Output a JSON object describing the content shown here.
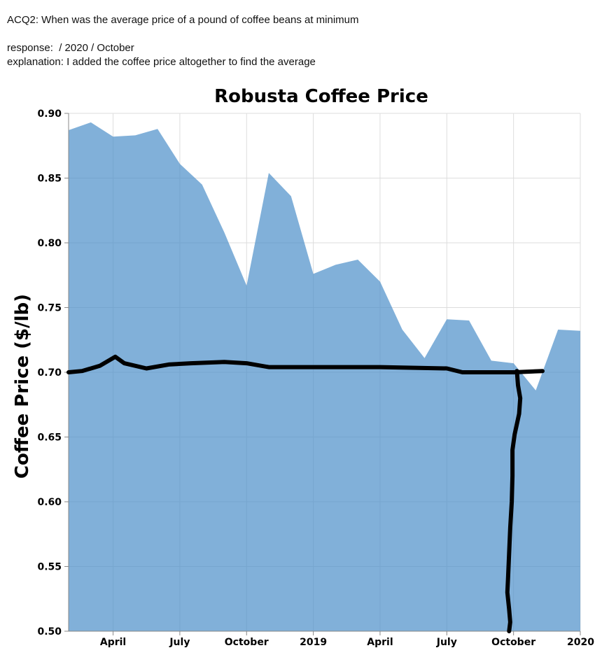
{
  "annotation": {
    "question": "ACQ2: When was the average price of a pound of coffee beans at minimum",
    "response": "response:  / 2020 / October",
    "explanation": "explanation: I added the coffee price altogether to find the average"
  },
  "chart_data": {
    "type": "area",
    "title": "Robusta Coffee Price",
    "xlabel": "",
    "ylabel": "Coffee Price ($/lb)",
    "ylim": [
      0.5,
      0.9
    ],
    "y_ticks": [
      "0.50",
      "0.55",
      "0.60",
      "0.65",
      "0.70",
      "0.75",
      "0.80",
      "0.85",
      "0.90"
    ],
    "x_ticks": [
      {
        "label": "April",
        "t": 3
      },
      {
        "label": "July",
        "t": 6
      },
      {
        "label": "October",
        "t": 9
      },
      {
        "label": "2019",
        "t": 12
      },
      {
        "label": "April",
        "t": 15
      },
      {
        "label": "July",
        "t": 18
      },
      {
        "label": "October",
        "t": 21
      },
      {
        "label": "2020",
        "t": 24
      }
    ],
    "x_domain": [
      1,
      24
    ],
    "series": [
      {
        "name": "Robusta price",
        "color": "#4c8fc9",
        "t": [
          1,
          2,
          3,
          4,
          5,
          6,
          7,
          8,
          9,
          10,
          11,
          12,
          13,
          14,
          15,
          16,
          17,
          18,
          19,
          20,
          21,
          22,
          23,
          24
        ],
        "values": [
          0.887,
          0.893,
          0.882,
          0.883,
          0.888,
          0.861,
          0.845,
          0.808,
          0.767,
          0.854,
          0.836,
          0.776,
          0.783,
          0.787,
          0.77,
          0.733,
          0.711,
          0.741,
          0.74,
          0.709,
          0.707,
          0.686,
          0.733,
          0.732
        ]
      }
    ],
    "handdrawn_marks": {
      "color": "#000000",
      "horizontal": {
        "t": [
          1.0,
          1.6,
          2.4,
          3.1,
          3.5,
          4.5,
          5.5,
          6.5,
          8.0,
          9.0,
          10.0,
          12.0,
          15.0,
          18.0,
          18.7,
          20.0,
          21.0,
          22.3
        ],
        "values": [
          0.7,
          0.701,
          0.705,
          0.712,
          0.707,
          0.703,
          0.706,
          0.707,
          0.708,
          0.707,
          0.704,
          0.704,
          0.704,
          0.703,
          0.7,
          0.7,
          0.7,
          0.701
        ]
      },
      "vertical": {
        "t": [
          21.15,
          21.2,
          21.3,
          21.25,
          21.05,
          20.95,
          20.95,
          20.92,
          20.85,
          20.8,
          20.75,
          20.72,
          20.8,
          20.85,
          20.8
        ],
        "values": [
          0.701,
          0.69,
          0.68,
          0.668,
          0.652,
          0.64,
          0.62,
          0.6,
          0.58,
          0.56,
          0.54,
          0.53,
          0.517,
          0.507,
          0.5
        ]
      }
    }
  }
}
